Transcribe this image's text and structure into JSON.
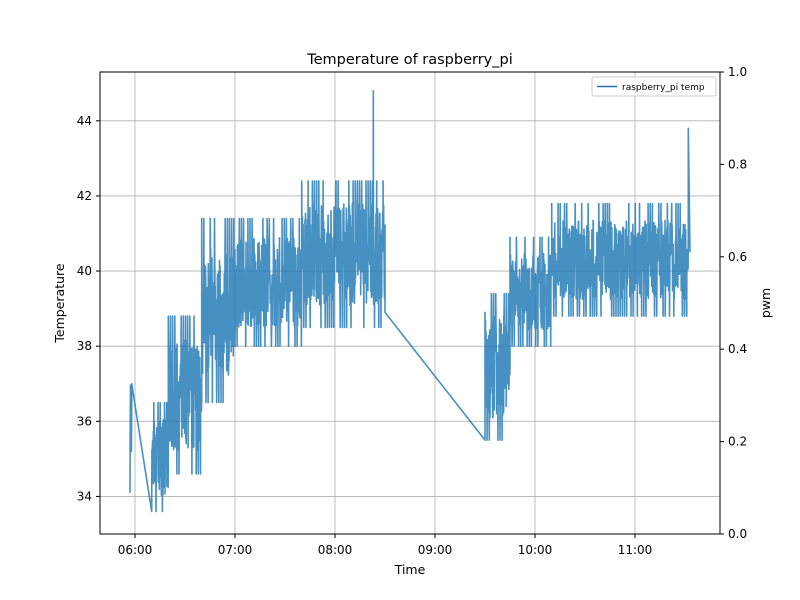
{
  "chart_data": {
    "type": "line",
    "title": "Temperature of raspberry_pi",
    "xlabel": "Time",
    "ylabel": "Temperature",
    "ylabel_right": "pwm",
    "grid": true,
    "legend_position": "top-right",
    "x_ticks": [
      "06:00",
      "07:00",
      "08:00",
      "09:00",
      "10:00",
      "11:00"
    ],
    "x_range": [
      "05:39",
      "11:51"
    ],
    "ylim": [
      33.0,
      45.3
    ],
    "y_ticks": [
      34,
      36,
      38,
      40,
      42,
      44
    ],
    "y2lim": [
      0.0,
      1.0
    ],
    "y2_ticks": [
      "0.0",
      "0.2",
      "0.4",
      "0.6",
      "0.8",
      "1.0"
    ],
    "colors": {
      "series": "#1f77b4",
      "grid": "#b0b0b0",
      "axis": "#000000"
    },
    "series": [
      {
        "name": "raspberry_pi temp",
        "axis": "left",
        "noisy_segments": [
          {
            "x_start": "05:57",
            "x_end": "05:58",
            "low": 34.1,
            "high": 38.0
          },
          {
            "x_start": "06:10",
            "x_end": "06:20",
            "low": 33.6,
            "high": 36.5
          },
          {
            "x_start": "06:20",
            "x_end": "06:40",
            "low": 34.6,
            "high": 38.8
          },
          {
            "x_start": "06:40",
            "x_end": "07:00",
            "low": 36.5,
            "high": 41.4
          },
          {
            "x_start": "07:00",
            "x_end": "07:40",
            "low": 38.0,
            "high": 41.4
          },
          {
            "x_start": "07:40",
            "x_end": "08:30",
            "low": 38.5,
            "high": 42.4
          },
          {
            "x_start": "09:30",
            "x_end": "09:45",
            "low": 35.5,
            "high": 39.4
          },
          {
            "x_start": "09:45",
            "x_end": "10:10",
            "low": 38.0,
            "high": 40.9
          },
          {
            "x_start": "10:10",
            "x_end": "11:32",
            "low": 38.8,
            "high": 41.8
          }
        ],
        "points": [
          {
            "x": "05:58",
            "y": 37.0
          },
          {
            "x": "06:15",
            "y": 35.5
          },
          {
            "x": "06:16",
            "y": 34.2
          },
          {
            "x": "06:21",
            "y": 35.5
          },
          {
            "x": "08:23",
            "y": 44.8
          },
          {
            "x": "08:25",
            "y": 40.6
          },
          {
            "x": "08:30",
            "y": 38.9
          },
          {
            "x": "09:30",
            "y": 38.9
          },
          {
            "x": "11:32",
            "y": 43.8
          },
          {
            "x": "11:33",
            "y": 40.5
          }
        ]
      }
    ]
  }
}
